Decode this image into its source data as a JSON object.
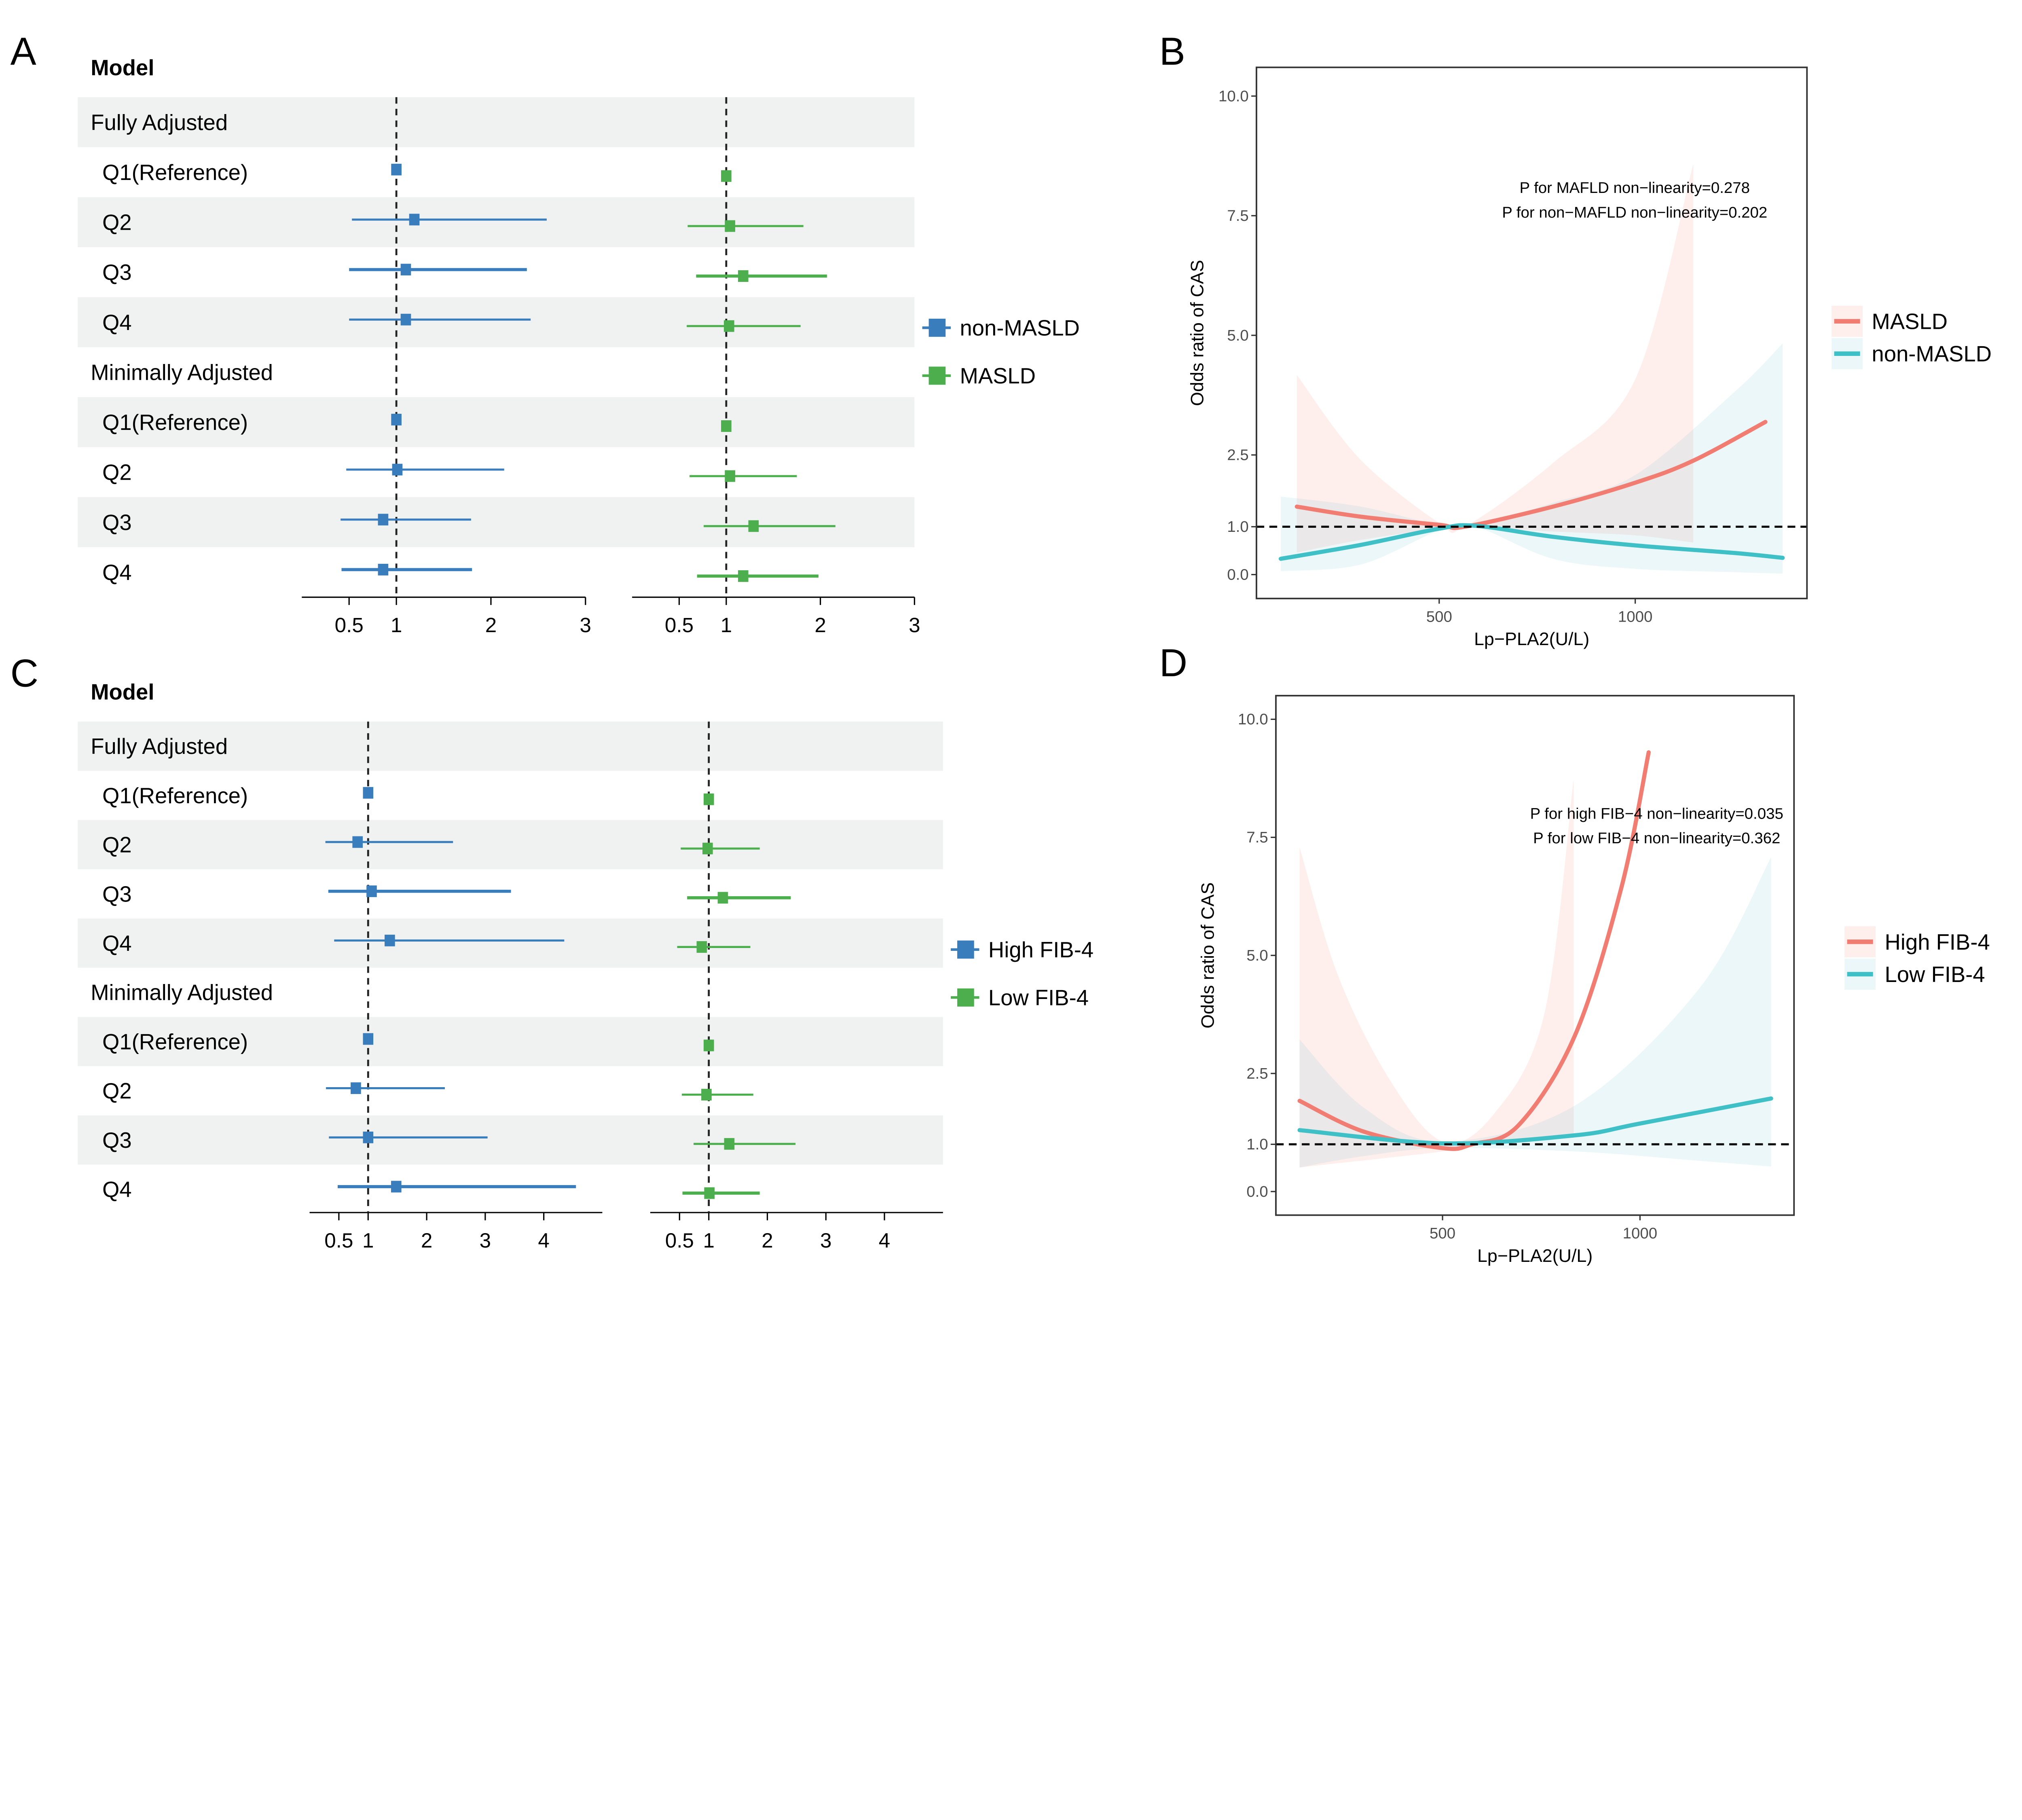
{
  "panels": [
    "A",
    "B",
    "C",
    "D"
  ],
  "chart_data": [
    {
      "panel": "A",
      "type": "scatter",
      "error_bars": true,
      "header": "Model",
      "rows": [
        {
          "label": "Fully Adjusted",
          "group": true
        },
        {
          "label": "Q1(Reference)"
        },
        {
          "label": "Q2"
        },
        {
          "label": "Q3"
        },
        {
          "label": "Q4"
        },
        {
          "label": "Minimally Adjusted",
          "group": true
        },
        {
          "label": "Q1(Reference)"
        },
        {
          "label": "Q2"
        },
        {
          "label": "Q3"
        },
        {
          "label": "Q4"
        }
      ],
      "xlim": [
        0,
        3
      ],
      "xticks": [
        0.5,
        1,
        2,
        3
      ],
      "xtick_labels": [
        "0.5",
        "1",
        "2",
        "3"
      ],
      "reference_line": 1,
      "legend": "right",
      "series": [
        {
          "name": "non-MASLD",
          "color": "#3a7dbd",
          "estimate": [
            null,
            1.0,
            1.19,
            1.1,
            1.1,
            null,
            1.0,
            1.01,
            0.86,
            0.86
          ],
          "lower": [
            null,
            1.0,
            0.53,
            0.5,
            0.5,
            null,
            1.0,
            0.47,
            0.41,
            0.42
          ],
          "upper": [
            null,
            1.0,
            2.59,
            2.38,
            2.42,
            null,
            1.0,
            2.14,
            1.79,
            1.8
          ]
        },
        {
          "name": "MASLD",
          "color": "#4cae4c",
          "estimate": [
            null,
            1.0,
            1.04,
            1.18,
            1.03,
            null,
            1.0,
            1.04,
            1.29,
            1.18
          ],
          "lower": [
            null,
            1.0,
            0.59,
            0.68,
            0.58,
            null,
            1.0,
            0.61,
            0.76,
            0.69
          ],
          "upper": [
            null,
            1.0,
            1.82,
            2.07,
            1.79,
            null,
            1.0,
            1.75,
            2.16,
            1.98
          ]
        }
      ]
    },
    {
      "panel": "B",
      "type": "line",
      "xlabel": "Lp−PLA2(U/L)",
      "ylabel": "Odds ratio of CAS",
      "xlim": [
        34,
        1438
      ],
      "ylim": [
        -0.5,
        10.6
      ],
      "xticks": [
        500,
        1000
      ],
      "yticks": [
        0.0,
        1.0,
        2.5,
        5.0,
        7.5,
        10.0
      ],
      "ytick_labels": [
        "0.0",
        "1.0",
        "2.5",
        "5.0",
        "7.5",
        "10.0"
      ],
      "reference_line": 1,
      "annotations": [
        "P for MAFLD non−linearity=0.278",
        "P for non−MAFLD non−linearity=0.202"
      ],
      "legend": "right",
      "series": [
        {
          "name": "MASLD",
          "color": "#f07c72",
          "x": [
            137,
            300,
            500,
            565,
            790,
            1000,
            1148,
            1332
          ],
          "y": [
            1.42,
            1.21,
            1.04,
            1.0,
            1.42,
            1.92,
            2.38,
            3.19
          ],
          "ci": {
            "x": [
              137,
              297,
              500,
              565,
              790,
              1000,
              1148
            ],
            "upper": [
              4.17,
              2.42,
              1.08,
              1.0,
              2.33,
              4.08,
              8.58
            ],
            "lower": [
              0.46,
              0.72,
              0.96,
              1.0,
              0.9,
              0.82,
              0.67
            ]
          }
        },
        {
          "name": "non-MASLD",
          "color": "#3fbfc6",
          "x": [
            96,
            300,
            500,
            593,
            790,
            1000,
            1255,
            1376
          ],
          "y": [
            0.33,
            0.62,
            0.96,
            1.02,
            0.79,
            0.61,
            0.45,
            0.35
          ],
          "ci": {
            "x": [
              96,
              300,
              500,
              593,
              790,
              1000,
              1255,
              1376
            ],
            "upper": [
              1.63,
              1.42,
              1.04,
              1.02,
              1.5,
              2.08,
              3.83,
              4.83
            ],
            "lower": [
              0.07,
              0.21,
              0.92,
              1.0,
              0.33,
              0.12,
              0.05,
              0.02
            ]
          }
        }
      ]
    },
    {
      "panel": "C",
      "type": "scatter",
      "error_bars": true,
      "header": "Model",
      "rows": [
        {
          "label": "Fully Adjusted",
          "group": true
        },
        {
          "label": "Q1(Reference)"
        },
        {
          "label": "Q2"
        },
        {
          "label": "Q3"
        },
        {
          "label": "Q4"
        },
        {
          "label": "Minimally Adjusted",
          "group": true
        },
        {
          "label": "Q1(Reference)"
        },
        {
          "label": "Q2"
        },
        {
          "label": "Q3"
        },
        {
          "label": "Q4"
        }
      ],
      "xlim": [
        0,
        5
      ],
      "xticks": [
        0.5,
        1,
        2,
        3,
        4
      ],
      "xtick_labels": [
        "0.5",
        "1",
        "2",
        "3",
        "4"
      ],
      "reference_line": 1,
      "legend": "right",
      "series": [
        {
          "name": "High FIB-4",
          "color": "#3a7dbd",
          "estimate": [
            null,
            1.0,
            0.82,
            1.06,
            1.37,
            null,
            1.0,
            0.79,
            1.0,
            1.48
          ],
          "lower": [
            null,
            1.0,
            0.27,
            0.32,
            0.42,
            null,
            1.0,
            0.28,
            0.33,
            0.48
          ],
          "upper": [
            null,
            1.0,
            2.45,
            3.44,
            4.35,
            null,
            1.0,
            2.31,
            3.04,
            4.55
          ]
        },
        {
          "name": "Low FIB-4",
          "color": "#4cae4c",
          "estimate": [
            null,
            1.0,
            0.98,
            1.24,
            0.88,
            null,
            1.0,
            0.96,
            1.35,
            1.01
          ],
          "lower": [
            null,
            1.0,
            0.52,
            0.63,
            0.46,
            null,
            1.0,
            0.54,
            0.74,
            0.55
          ],
          "upper": [
            null,
            1.0,
            1.87,
            2.4,
            1.71,
            null,
            1.0,
            1.76,
            2.48,
            1.87
          ]
        }
      ]
    },
    {
      "panel": "D",
      "type": "line",
      "xlabel": "Lp−PLA2(U/L)",
      "ylabel": "Odds ratio of CAS",
      "xlim": [
        78,
        1390
      ],
      "ylim": [
        -0.5,
        10.5
      ],
      "xticks": [
        500,
        1000
      ],
      "yticks": [
        0.0,
        1.0,
        2.5,
        5.0,
        7.5,
        10.0
      ],
      "ytick_labels": [
        "0.0",
        "1.0",
        "2.5",
        "5.0",
        "7.5",
        "10.0"
      ],
      "reference_line": 1,
      "annotations": [
        "P for high FIB−4 non−linearity=0.035",
        "P for low FIB−4 non−linearity=0.362"
      ],
      "legend": "right",
      "series": [
        {
          "name": "High FIB-4",
          "color": "#f07c72",
          "x": [
            138,
            300,
            500,
            574,
            692,
            835,
            953,
            1022
          ],
          "y": [
            1.92,
            1.27,
            0.92,
            1.0,
            1.4,
            3.3,
            6.44,
            9.3
          ],
          "ci": {
            "x": [
              138,
              235,
              366,
              500,
              627,
              757,
              832
            ],
            "upper": [
              7.29,
              4.58,
              2.37,
              1.06,
              1.61,
              3.73,
              8.73
            ],
            "lower": [
              0.51,
              0.6,
              0.72,
              0.85,
              1.02,
              1.12,
              1.19
            ]
          }
        },
        {
          "name": "Low FIB-4",
          "color": "#3fbfc6",
          "x": [
            138,
            500,
            835,
            1000,
            1332
          ],
          "y": [
            1.3,
            1.02,
            1.19,
            1.44,
            1.97
          ],
          "ci": {
            "x": [
              138,
              300,
              500,
              835,
              1152,
              1332
            ],
            "upper": [
              3.22,
              1.78,
              1.06,
              1.82,
              4.32,
              7.08
            ],
            "lower": [
              0.51,
              0.75,
              0.92,
              0.85,
              0.65,
              0.53
            ]
          }
        }
      ]
    }
  ]
}
